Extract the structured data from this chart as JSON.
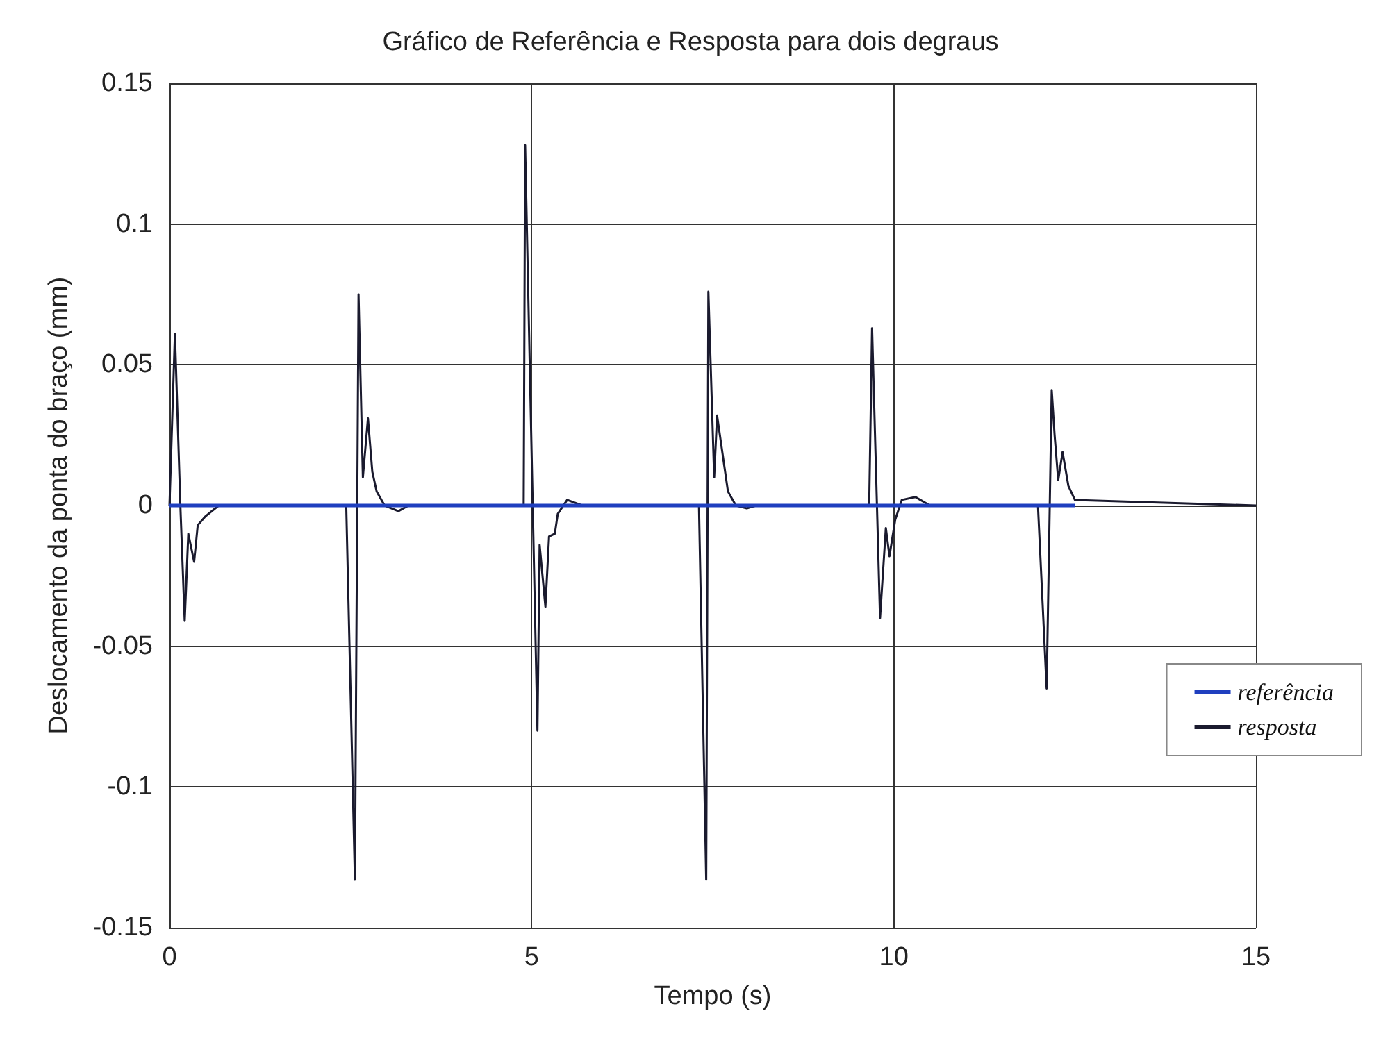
{
  "chart_data": {
    "type": "line",
    "title": "Gráfico de Referência e Resposta para dois degraus",
    "xlabel": "Tempo (s)",
    "ylabel": "Deslocamento da ponta do braço (mm)",
    "xlim": [
      0,
      15
    ],
    "xticks": [
      0,
      5,
      10,
      15
    ],
    "ylim": [
      -0.15,
      0.15
    ],
    "yticks": [
      -0.15,
      -0.1,
      -0.05,
      0,
      0.05,
      0.1,
      0.15
    ],
    "grid": true,
    "legend": "right",
    "marker": "none",
    "line_style": "solid",
    "series": [
      {
        "name": "referência",
        "color": "#1f3fbf",
        "x": [
          0,
          12.5
        ],
        "values": [
          0,
          0
        ]
      },
      {
        "name": "resposta",
        "color": "#1a1a2e",
        "x": [
          0,
          0.075,
          0.15,
          0.21,
          0.26,
          0.34,
          0.39,
          0.49,
          0.68,
          2.44,
          2.56,
          2.61,
          2.67,
          2.74,
          2.8,
          2.86,
          2.97,
          3.16,
          3.3,
          4.89,
          4.91,
          5.08,
          5.11,
          5.19,
          5.24,
          5.32,
          5.36,
          5.49,
          5.7,
          7.31,
          7.41,
          7.44,
          7.52,
          7.56,
          7.71,
          7.82,
          7.97,
          8.1,
          9.66,
          9.7,
          9.81,
          9.89,
          9.94,
          10.02,
          10.11,
          10.3,
          10.5,
          11.99,
          12.11,
          12.18,
          12.22,
          12.27,
          12.33,
          12.41,
          12.5,
          15
        ],
        "values": [
          0,
          0.061,
          0,
          -0.041,
          -0.01,
          -0.02,
          -0.007,
          -0.004,
          0,
          0,
          -0.133,
          0.075,
          0.01,
          0.031,
          0.012,
          0.005,
          0,
          -0.002,
          0,
          0,
          0.128,
          -0.08,
          -0.014,
          -0.036,
          -0.011,
          -0.01,
          -0.003,
          0.002,
          0,
          0,
          -0.133,
          0.076,
          0.01,
          0.032,
          0.005,
          0,
          -0.001,
          0,
          0,
          0.063,
          -0.04,
          -0.008,
          -0.018,
          -0.005,
          0.002,
          0.003,
          0,
          0,
          -0.065,
          0.041,
          0.025,
          0.009,
          0.019,
          0.007,
          0.002,
          0
        ]
      }
    ]
  }
}
